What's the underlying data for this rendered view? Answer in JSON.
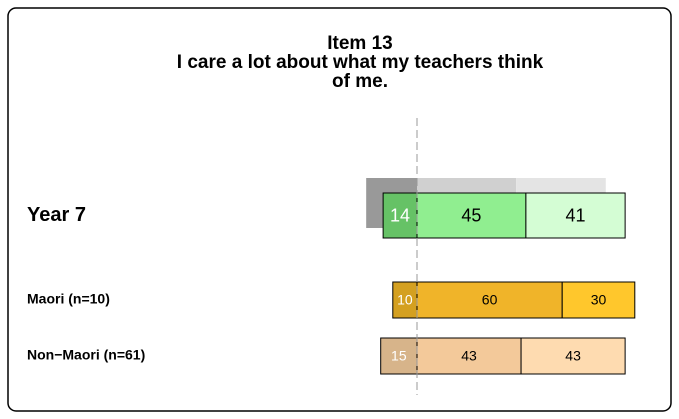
{
  "chart_data": {
    "type": "diverging_bar",
    "title_lines": [
      "Item 13",
      "I care a lot about what my teachers think",
      "of me."
    ],
    "rows": [
      {
        "name": "Year 7",
        "values": [
          14,
          45,
          41
        ],
        "colors": [
          "#66c266",
          "#90ee90",
          "#d4fdd4"
        ],
        "backdrop": {
          "values": [
            21,
            41,
            37
          ],
          "colors": [
            "#999999",
            "#d0d0d0",
            "#e4e4e4"
          ]
        }
      },
      {
        "name": "Maori (n=10)",
        "values": [
          10,
          60,
          30
        ],
        "colors": [
          "#d4a020",
          "#f0b429",
          "#ffc72c"
        ]
      },
      {
        "name": "Non−Maori (n=61)",
        "values": [
          15,
          43,
          43
        ],
        "colors": [
          "#d7b48a",
          "#f3c99a",
          "#fedbb0"
        ]
      }
    ]
  }
}
